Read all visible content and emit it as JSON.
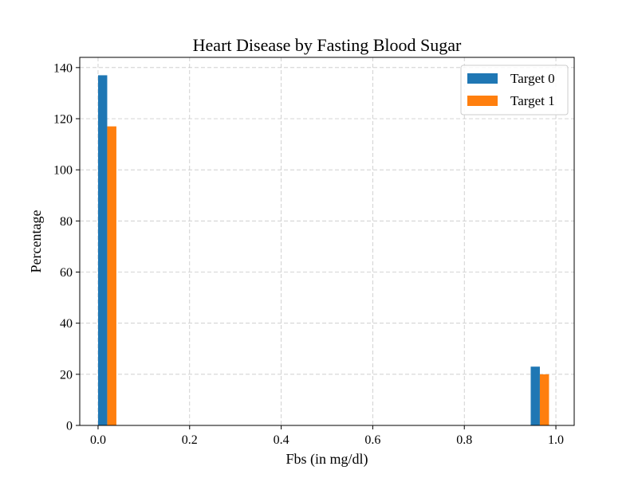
{
  "chart_data": {
    "type": "bar",
    "title": "Heart Disease by Fasting Blood Sugar",
    "xlabel": "Fbs (in mg/dl)",
    "ylabel": "Percentage",
    "xlim": [
      -0.04,
      1.04
    ],
    "ylim": [
      0,
      144
    ],
    "x_ticks": [
      0.0,
      0.2,
      0.4,
      0.6,
      0.8,
      1.0
    ],
    "x_tick_labels": [
      "0.0",
      "0.2",
      "0.4",
      "0.6",
      "0.8",
      "1.0"
    ],
    "y_ticks": [
      0,
      20,
      40,
      60,
      80,
      100,
      120,
      140
    ],
    "y_tick_labels": [
      "0",
      "20",
      "40",
      "60",
      "80",
      "100",
      "120",
      "140"
    ],
    "grid": true,
    "legend_position": "top-right",
    "bar_width": 0.02,
    "x": [
      0,
      1
    ],
    "series": [
      {
        "name": "Target 0",
        "color": "#1f77b4",
        "values": [
          137,
          23
        ],
        "x_values": [
          0.01,
          0.955
        ]
      },
      {
        "name": "Target 1",
        "color": "#ff7f0e",
        "values": [
          117,
          20
        ],
        "x_values": [
          0.03,
          0.975
        ]
      }
    ]
  }
}
